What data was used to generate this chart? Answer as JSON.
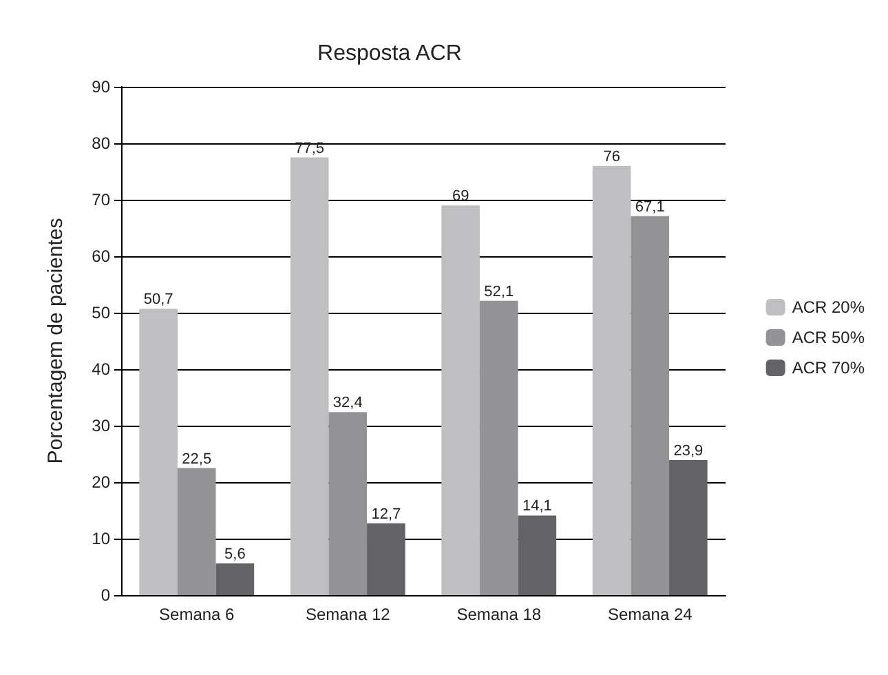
{
  "chart_data": {
    "type": "bar",
    "title": "Resposta ACR",
    "ylabel": "Porcentagem de pacientes",
    "categories": [
      "Semana 6",
      "Semana 12",
      "Semana 18",
      "Semana 24"
    ],
    "series": [
      {
        "name": "ACR 20%",
        "color": "#bfbfc1",
        "values": [
          50.7,
          77.5,
          69,
          76
        ],
        "value_labels": [
          "50,7",
          "77,5",
          "69",
          "76"
        ]
      },
      {
        "name": "ACR 50%",
        "color": "#939395",
        "values": [
          22.5,
          32.4,
          52.1,
          67.1
        ],
        "value_labels": [
          "22,5",
          "32,4",
          "52,1",
          "67,1"
        ]
      },
      {
        "name": "ACR 70%",
        "color": "#636367",
        "values": [
          5.6,
          12.7,
          14.1,
          23.9
        ],
        "value_labels": [
          "5,6",
          "12,7",
          "14,1",
          "23,9"
        ]
      }
    ],
    "ylim": [
      0,
      90
    ],
    "yticks": [
      0,
      10,
      20,
      30,
      40,
      50,
      60,
      70,
      80,
      90
    ],
    "grid": "y",
    "legend": "right"
  }
}
